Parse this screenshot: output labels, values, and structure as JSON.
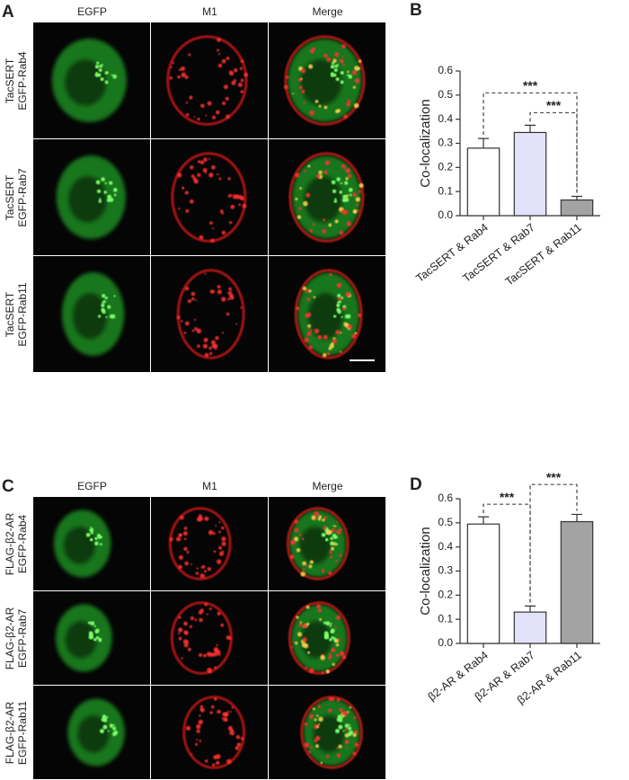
{
  "panels": [
    {
      "letter": "A",
      "columns": [
        "EGFP",
        "M1",
        "Merge"
      ],
      "rows": [
        [
          "TacSERT",
          "EGFP-Rab4"
        ],
        [
          "TacSERT",
          "EGFP-Rab7"
        ],
        [
          "TacSERT",
          "EGFP-Rab11"
        ]
      ]
    },
    {
      "letter": "C",
      "columns": [
        "EGFP",
        "M1",
        "Merge"
      ],
      "rows": [
        [
          "FLAG-β2-AR",
          "EGFP-Rab4"
        ],
        [
          "FLAG-β2-AR",
          "EGFP-Rab7"
        ],
        [
          "FLAG-β2-AR",
          "EGFP-Rab11"
        ]
      ]
    }
  ],
  "chart_data": [
    {
      "type": "bar",
      "panel": "B",
      "ylabel": "Co-localization",
      "categories": [
        "TacSERT & Rab4",
        "TacSERT & Rab7",
        "TacSERT & Rab11"
      ],
      "values": [
        0.28,
        0.345,
        0.065
      ],
      "errors": [
        0.04,
        0.03,
        0.015
      ],
      "colors": [
        "#ffffff",
        "#e2e2fb",
        "#a3a3a3"
      ],
      "ylim": [
        0,
        0.6
      ],
      "yticks": [
        {
          "value": 0,
          "label": "0.0"
        },
        0.1,
        0.2,
        0.3,
        0.4,
        0.5,
        0.6
      ],
      "comparisons": [
        {
          "label": "***",
          "between": [
            "TacSERT & Rab7",
            "TacSERT & Rab11"
          ]
        },
        {
          "label": "***",
          "between": [
            "TacSERT & Rab4",
            "TacSERT & Rab11"
          ]
        }
      ]
    },
    {
      "type": "bar",
      "panel": "D",
      "ylabel": "Co-localization",
      "categories": [
        "β2-AR & Rab4",
        "β2-AR & Rab7",
        "β2-AR & Rab11"
      ],
      "values": [
        0.495,
        0.13,
        0.505
      ],
      "errors": [
        0.03,
        0.025,
        0.03
      ],
      "colors": [
        "#ffffff",
        "#e2e2fb",
        "#a3a3a3"
      ],
      "ylim": [
        0,
        0.6
      ],
      "yticks": [
        {
          "value": 0,
          "label": "0.0"
        },
        0.1,
        0.2,
        0.3,
        0.4,
        0.5,
        0.6
      ],
      "comparisons": [
        {
          "label": "***",
          "between": [
            "β2-AR & Rab4",
            "β2-AR & Rab7"
          ]
        },
        {
          "label": "***",
          "between": [
            "β2-AR & Rab7",
            "β2-AR & Rab11"
          ]
        }
      ]
    }
  ]
}
